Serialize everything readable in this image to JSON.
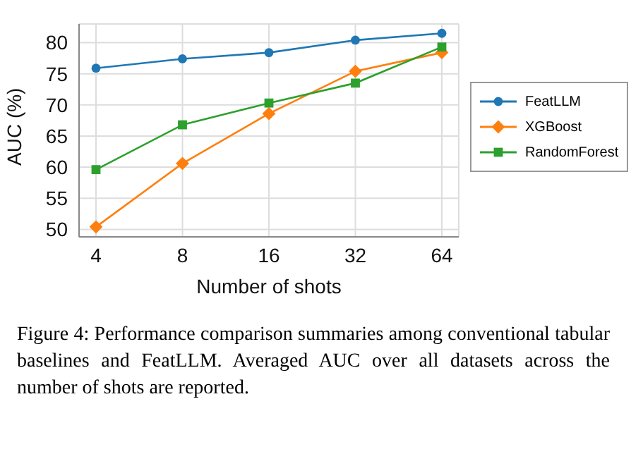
{
  "chart_data": {
    "type": "line",
    "categories": [
      "4",
      "8",
      "16",
      "32",
      "64"
    ],
    "xlabel": "Number of shots",
    "ylabel": "AUC (%)",
    "ylim": [
      48.8,
      83
    ],
    "yticks": [
      50,
      55,
      60,
      65,
      70,
      75,
      80
    ],
    "grid": true,
    "legend": "right",
    "series": [
      {
        "name": "FeatLLM",
        "color": "#1f77b4",
        "marker": "circle",
        "values": [
          75.9,
          77.4,
          78.4,
          80.4,
          81.5
        ]
      },
      {
        "name": "XGBoost",
        "color": "#ff7f0e",
        "marker": "diamond",
        "values": [
          50.4,
          60.6,
          68.6,
          75.4,
          78.4
        ]
      },
      {
        "name": "RandomForest",
        "color": "#2ca02c",
        "marker": "square",
        "values": [
          59.6,
          66.8,
          70.3,
          73.5,
          79.3
        ]
      }
    ],
    "annotations": [
      "Figure 4: Performance comparison summaries among conventional tabular baselines and FeatLLM. Averaged AUC over all datasets across the number of shots are reported."
    ]
  }
}
